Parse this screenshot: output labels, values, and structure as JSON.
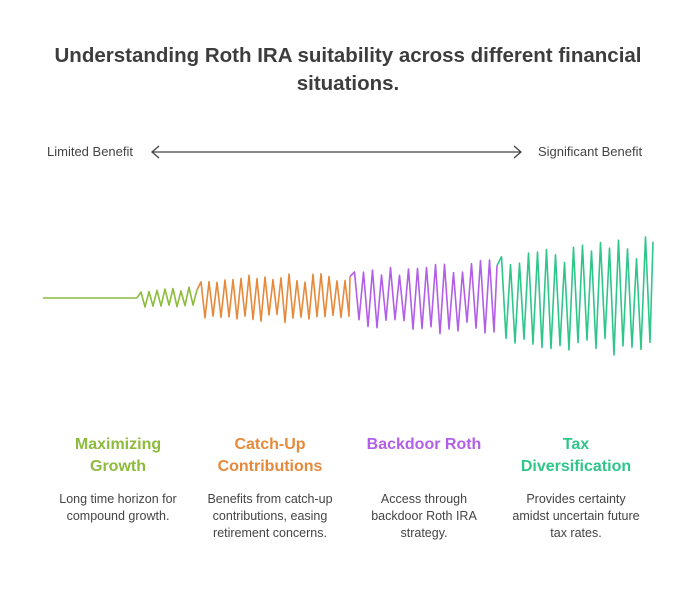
{
  "title": "Understanding Roth IRA suitability across different financial situations.",
  "scale": {
    "left": "Limited Benefit",
    "right": "Significant Benefit"
  },
  "columns": [
    {
      "title": "Maximizing Growth",
      "description": "Long time horizon for compound growth.",
      "color": "#8dbb3c"
    },
    {
      "title": "Catch-Up Contributions",
      "description": "Benefits from catch-up contributions, easing retirement concerns.",
      "color": "#e6893a"
    },
    {
      "title": "Backdoor Roth",
      "description": "Access through backdoor Roth IRA strategy.",
      "color": "#b35ee6"
    },
    {
      "title": "Tax Diversification",
      "description": "Provides certainty amidst uncertain future tax rates.",
      "color": "#2fc68a"
    }
  ]
}
